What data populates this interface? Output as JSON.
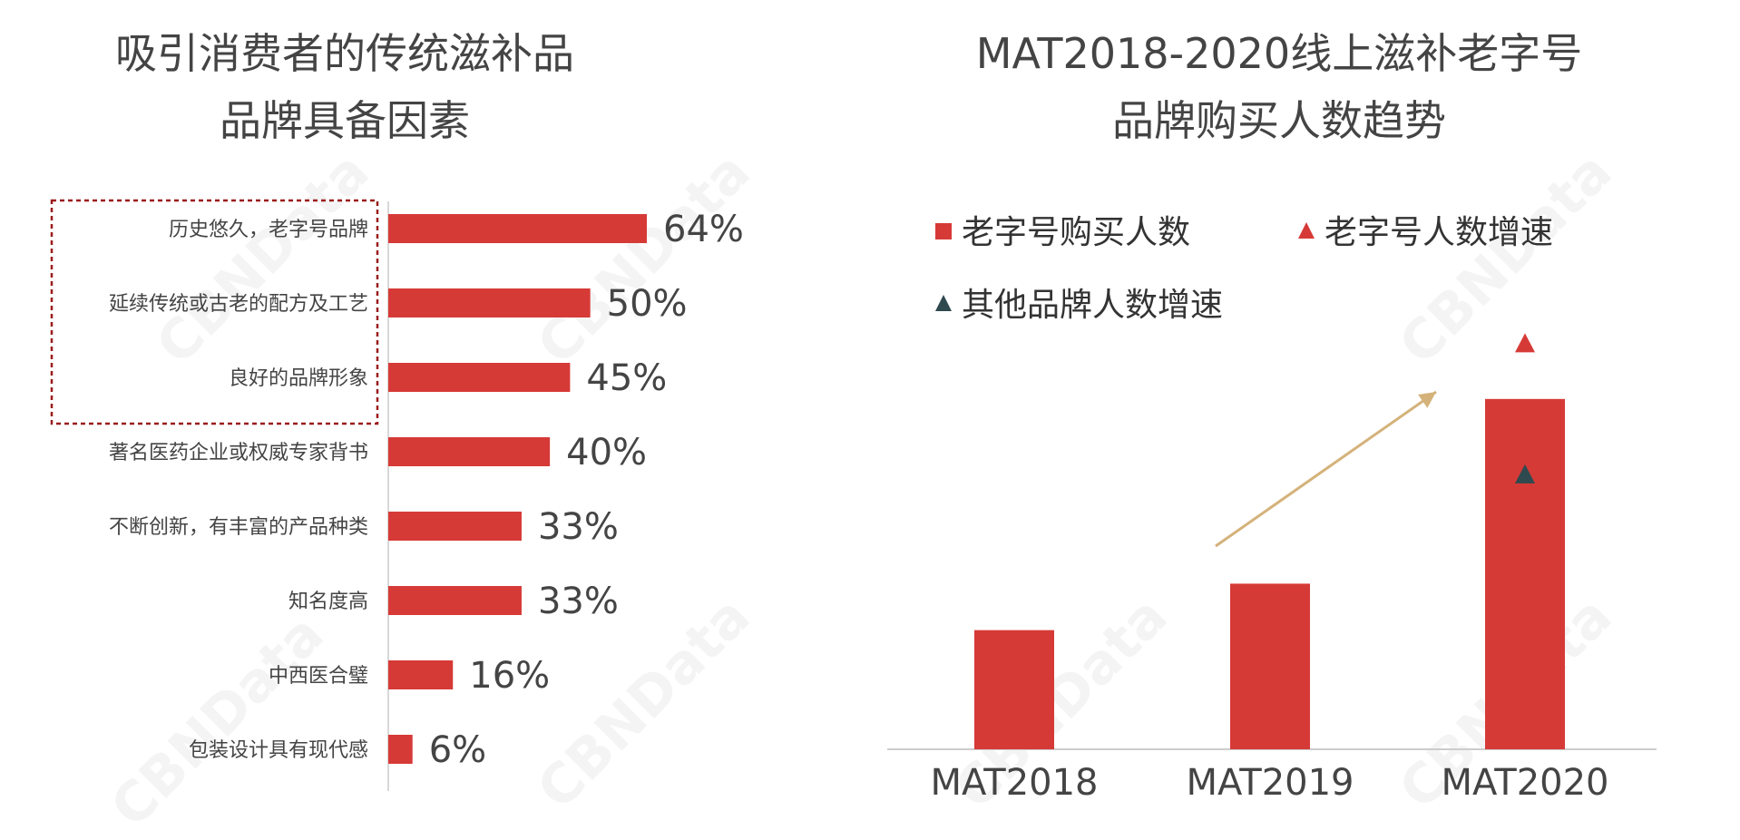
{
  "colors": {
    "bar": "#d63a37",
    "triangle_red": "#d63a37",
    "triangle_dark": "#2e4a4f",
    "highlight_box": "#9b1c1c",
    "arrow": "#d4b27a",
    "axis": "#cccccc"
  },
  "watermark": "CBNData",
  "left_chart": {
    "title_line1": "吸引消费者的传统滋补品",
    "title_line2": "品牌具备因素"
  },
  "right_chart": {
    "title_line1": "MAT2018-2020线上滋补老字号",
    "title_line2": "品牌购买人数趋势"
  },
  "chart_data": [
    {
      "type": "bar",
      "orientation": "horizontal",
      "title": "吸引消费者的传统滋补品品牌具备因素",
      "categories": [
        "历史悠久，老字号品牌",
        "延续传统或古老的配方及工艺",
        "良好的品牌形象",
        "著名医药企业或权威专家背书",
        "不断创新，有丰富的产品种类",
        "知名度高",
        "中西医合璧",
        "包装设计具有现代感"
      ],
      "values": [
        64,
        50,
        45,
        40,
        33,
        33,
        16,
        6
      ],
      "value_labels": [
        "64%",
        "50%",
        "45%",
        "40%",
        "33%",
        "33%",
        "16%",
        "6%"
      ],
      "unit": "%",
      "highlighted_categories": [
        0,
        1,
        2
      ]
    },
    {
      "type": "bar",
      "title": "MAT2018-2020线上滋补老字号品牌购买人数趋势",
      "categories": [
        "MAT2018",
        "MAT2019",
        "MAT2020"
      ],
      "series": [
        {
          "name": "老字号购买人数",
          "kind": "bar",
          "values": [
            1.0,
            1.39,
            2.94
          ]
        },
        {
          "name": "老字号人数增速",
          "kind": "triangle",
          "color": "red",
          "values": [
            null,
            null,
            3.4
          ]
        },
        {
          "name": "其他品牌人数增速",
          "kind": "triangle",
          "color": "dark",
          "values": [
            null,
            null,
            2.3
          ]
        }
      ],
      "note": "No y-axis scale printed; values are relative estimates.",
      "legend": [
        "老字号购买人数",
        "老字号人数增速",
        "其他品牌人数增速"
      ],
      "legend_position": "top",
      "trend_arrow": "rising from MAT2019 to MAT2020"
    }
  ]
}
